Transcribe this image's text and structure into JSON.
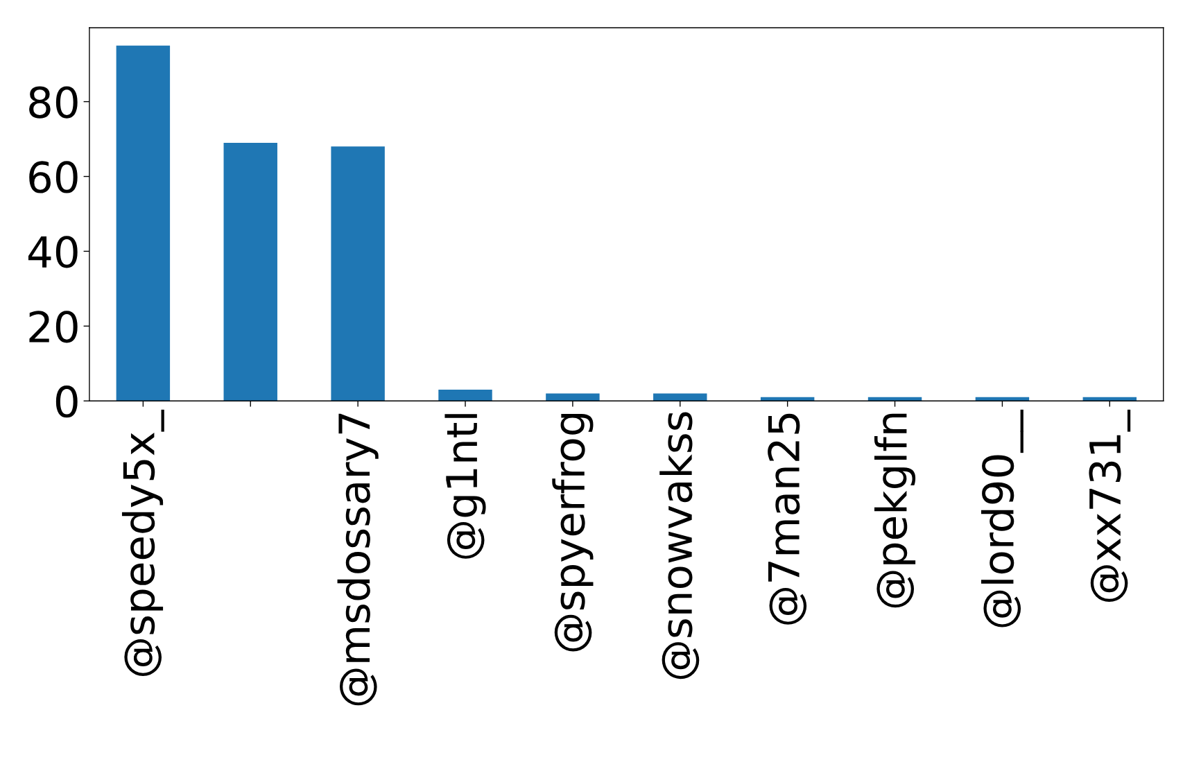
{
  "chart_data": {
    "type": "bar",
    "categories": [
      "@speedy5x_",
      null,
      "@msdossary7",
      "@g1ntl",
      "@spyerfrog",
      "@snowvakss",
      "@7man25",
      "@pekglfn",
      "@lord90__",
      "@xx731_"
    ],
    "values": [
      95,
      69,
      68,
      3,
      2,
      2,
      1,
      1,
      1,
      1
    ],
    "color": "#1f77b4",
    "ylim": [
      0,
      99.75
    ],
    "yticks": [
      0,
      20,
      40,
      60,
      80
    ],
    "grid": false,
    "legend": false
  }
}
